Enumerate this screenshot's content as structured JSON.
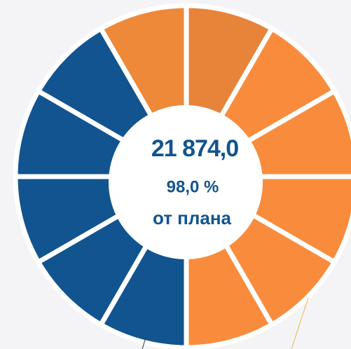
{
  "chart_data": {
    "type": "pie",
    "values": [
      1,
      1,
      1,
      1,
      1,
      1,
      1,
      1,
      1,
      1,
      1,
      1
    ],
    "colors": [
      "#e8833a",
      "#f98c3c",
      "#f98c3c",
      "#f98c3c",
      "#f98c3c",
      "#f98c3c",
      "#12548f",
      "#12548f",
      "#12548f",
      "#12548f",
      "#12548f",
      "#ee893a"
    ],
    "center_labels": [
      "21 874,0",
      "98,0 %",
      "от плана"
    ]
  }
}
